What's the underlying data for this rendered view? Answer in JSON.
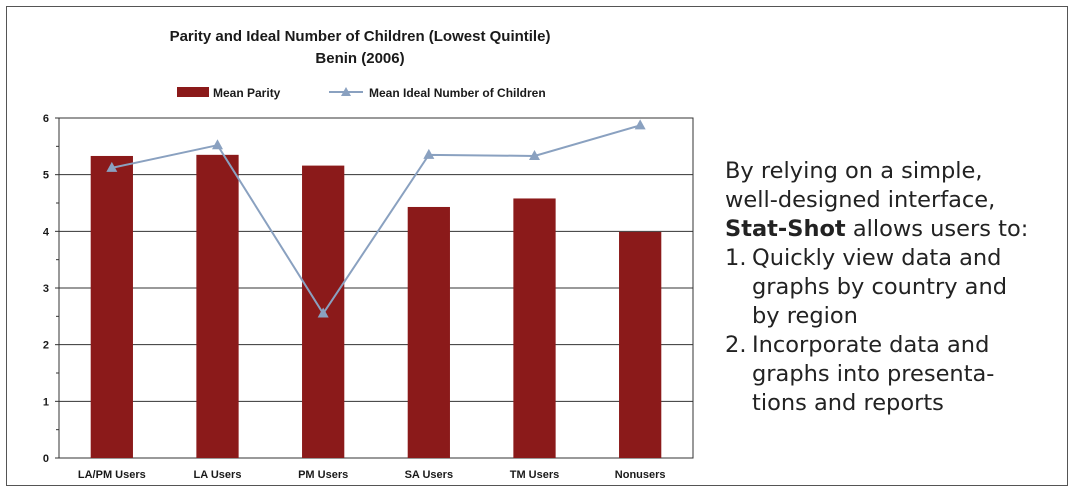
{
  "chart_data": {
    "type": "bar",
    "title": "Parity and Ideal Number of Children (Lowest Quintile)",
    "subtitle": "Benin (2006)",
    "categories": [
      "LA/PM Users",
      "LA Users",
      "PM Users",
      "SA Users",
      "TM Users",
      "Nonusers"
    ],
    "series": [
      {
        "name": "Mean Parity",
        "kind": "bar",
        "color": "#8b1a1a",
        "values": [
          5.33,
          5.35,
          5.16,
          4.43,
          4.58,
          3.99
        ]
      },
      {
        "name": "Mean Ideal Number of Children",
        "kind": "line",
        "marker": "triangle",
        "color": "#8aa1c0",
        "values": [
          5.12,
          5.52,
          2.55,
          5.35,
          5.33,
          5.87
        ]
      }
    ],
    "ylim": [
      0,
      6
    ],
    "yticks": [
      "0",
      "1",
      "2",
      "3",
      "4",
      "5",
      "6"
    ],
    "grid": true,
    "legend": "top"
  },
  "side_text": {
    "lead_line1": "By relying on a simple,",
    "lead_line2": "well-designed interface,",
    "brand": "Stat-Shot",
    "lead_rest": " allows users to:",
    "items": [
      {
        "num": "1.",
        "lines": [
          "Quickly view data and",
          "graphs by country and",
          "by region"
        ]
      },
      {
        "num": "2.",
        "lines": [
          "Incorporate data and",
          "graphs into presenta-",
          "tions and reports"
        ]
      }
    ]
  }
}
